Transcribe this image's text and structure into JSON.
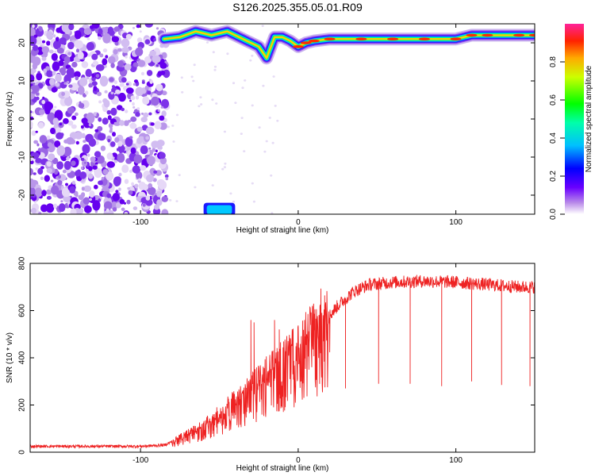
{
  "title": "S126.2025.355.05.01.R09",
  "charts": [
    {
      "type": "heatmap",
      "xlabel": "Height of straight line (km)",
      "ylabel": "Frequency (Hz)",
      "xlim": [
        -170,
        150
      ],
      "ylim": [
        -25,
        25
      ],
      "xticks": [
        -100,
        0,
        100
      ],
      "yticks": [
        -20,
        -10,
        0,
        10,
        20
      ],
      "colorbar": {
        "label": "Normalized spectral amplitude",
        "range": [
          0,
          1
        ],
        "ticks": [
          0.0,
          0.2,
          0.4,
          0.6,
          0.8
        ]
      },
      "features": {
        "noise_region_x": [
          -170,
          -83
        ],
        "signal_ridge": [
          [
            -85,
            21
          ],
          [
            -75,
            21.5
          ],
          [
            -65,
            23
          ],
          [
            -55,
            22
          ],
          [
            -45,
            23
          ],
          [
            -35,
            21
          ],
          [
            -25,
            19
          ],
          [
            -20,
            16
          ],
          [
            -15,
            21.5
          ],
          [
            -10,
            21.5
          ],
          [
            -5,
            20.5
          ],
          [
            0,
            19
          ],
          [
            5,
            20
          ],
          [
            10,
            20.5
          ],
          [
            20,
            21
          ],
          [
            40,
            21
          ],
          [
            60,
            21
          ],
          [
            80,
            21
          ],
          [
            100,
            21
          ],
          [
            110,
            22
          ],
          [
            120,
            22
          ],
          [
            140,
            22
          ],
          [
            150,
            22
          ]
        ],
        "low_blob": {
          "x": [
            -60,
            -40
          ],
          "y": [
            -25,
            -22
          ]
        }
      }
    },
    {
      "type": "line",
      "xlabel": "Height of straight line (km)",
      "ylabel": "SNR (10 * v/v)",
      "xlim": [
        -170,
        150
      ],
      "ylim": [
        0,
        800
      ],
      "xticks": [
        -100,
        0,
        100
      ],
      "yticks": [
        0,
        200,
        400,
        600,
        800
      ],
      "color": "#ee2222",
      "series_envelope": [
        [
          -170,
          25
        ],
        [
          -100,
          25
        ],
        [
          -85,
          30
        ],
        [
          -75,
          60
        ],
        [
          -65,
          90
        ],
        [
          -55,
          130
        ],
        [
          -45,
          180
        ],
        [
          -35,
          230
        ],
        [
          -25,
          290
        ],
        [
          -15,
          340
        ],
        [
          -5,
          400
        ],
        [
          5,
          460
        ],
        [
          15,
          540
        ],
        [
          25,
          620
        ],
        [
          35,
          680
        ],
        [
          45,
          710
        ],
        [
          60,
          720
        ],
        [
          80,
          725
        ],
        [
          100,
          720
        ],
        [
          120,
          710
        ],
        [
          140,
          700
        ],
        [
          150,
          700
        ]
      ],
      "dropouts": [
        [
          30,
          270
        ],
        [
          51,
          290
        ],
        [
          71,
          290
        ],
        [
          91,
          280
        ],
        [
          110,
          300
        ],
        [
          129,
          285
        ],
        [
          147,
          280
        ]
      ],
      "spikes": [
        [
          -30,
          560
        ],
        [
          -28,
          550
        ],
        [
          -15,
          560
        ],
        [
          -12,
          520
        ],
        [
          2,
          480
        ],
        [
          12,
          540
        ]
      ]
    }
  ]
}
